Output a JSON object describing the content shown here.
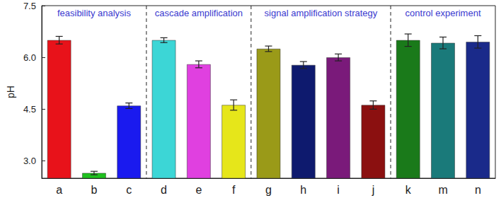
{
  "chart_data": {
    "type": "bar",
    "y_label": "pH",
    "categories": [
      "a",
      "b",
      "c",
      "d",
      "e",
      "f",
      "g",
      "h",
      "i",
      "j",
      "k",
      "m",
      "n"
    ],
    "values": [
      6.5,
      2.65,
      4.6,
      6.5,
      5.8,
      4.62,
      6.25,
      5.78,
      6.0,
      4.62,
      6.5,
      6.42,
      6.45
    ],
    "errors": [
      0.11,
      0.05,
      0.08,
      0.07,
      0.1,
      0.15,
      0.08,
      0.1,
      0.1,
      0.12,
      0.18,
      0.17,
      0.18
    ],
    "colors": [
      "#e8121a",
      "#1fc11f",
      "#1a1aef",
      "#3cd6d6",
      "#e040e0",
      "#e6e61a",
      "#9a9a18",
      "#0e1a6e",
      "#7a1a7a",
      "#8b1010",
      "#1a7a1a",
      "#1a7a7a",
      "#1a2a8a"
    ],
    "ylim": [
      2.5,
      7.5
    ],
    "yticks": [
      {
        "value": 3,
        "label": "3.0"
      },
      {
        "value": 4.5,
        "label": "4.5"
      },
      {
        "value": 6,
        "label": "6.0"
      },
      {
        "value": 7.5,
        "label": "7.5"
      }
    ],
    "grid": false,
    "sections": [
      {
        "title": "feasibility analysis",
        "categories": [
          "a",
          "b",
          "c"
        ]
      },
      {
        "title": "cascade amplification",
        "categories": [
          "d",
          "e",
          "f"
        ]
      },
      {
        "title": "signal amplification strategy",
        "categories": [
          "g",
          "h",
          "i",
          "j"
        ]
      },
      {
        "title": "control experiment",
        "categories": [
          "k",
          "m",
          "n"
        ]
      }
    ]
  }
}
